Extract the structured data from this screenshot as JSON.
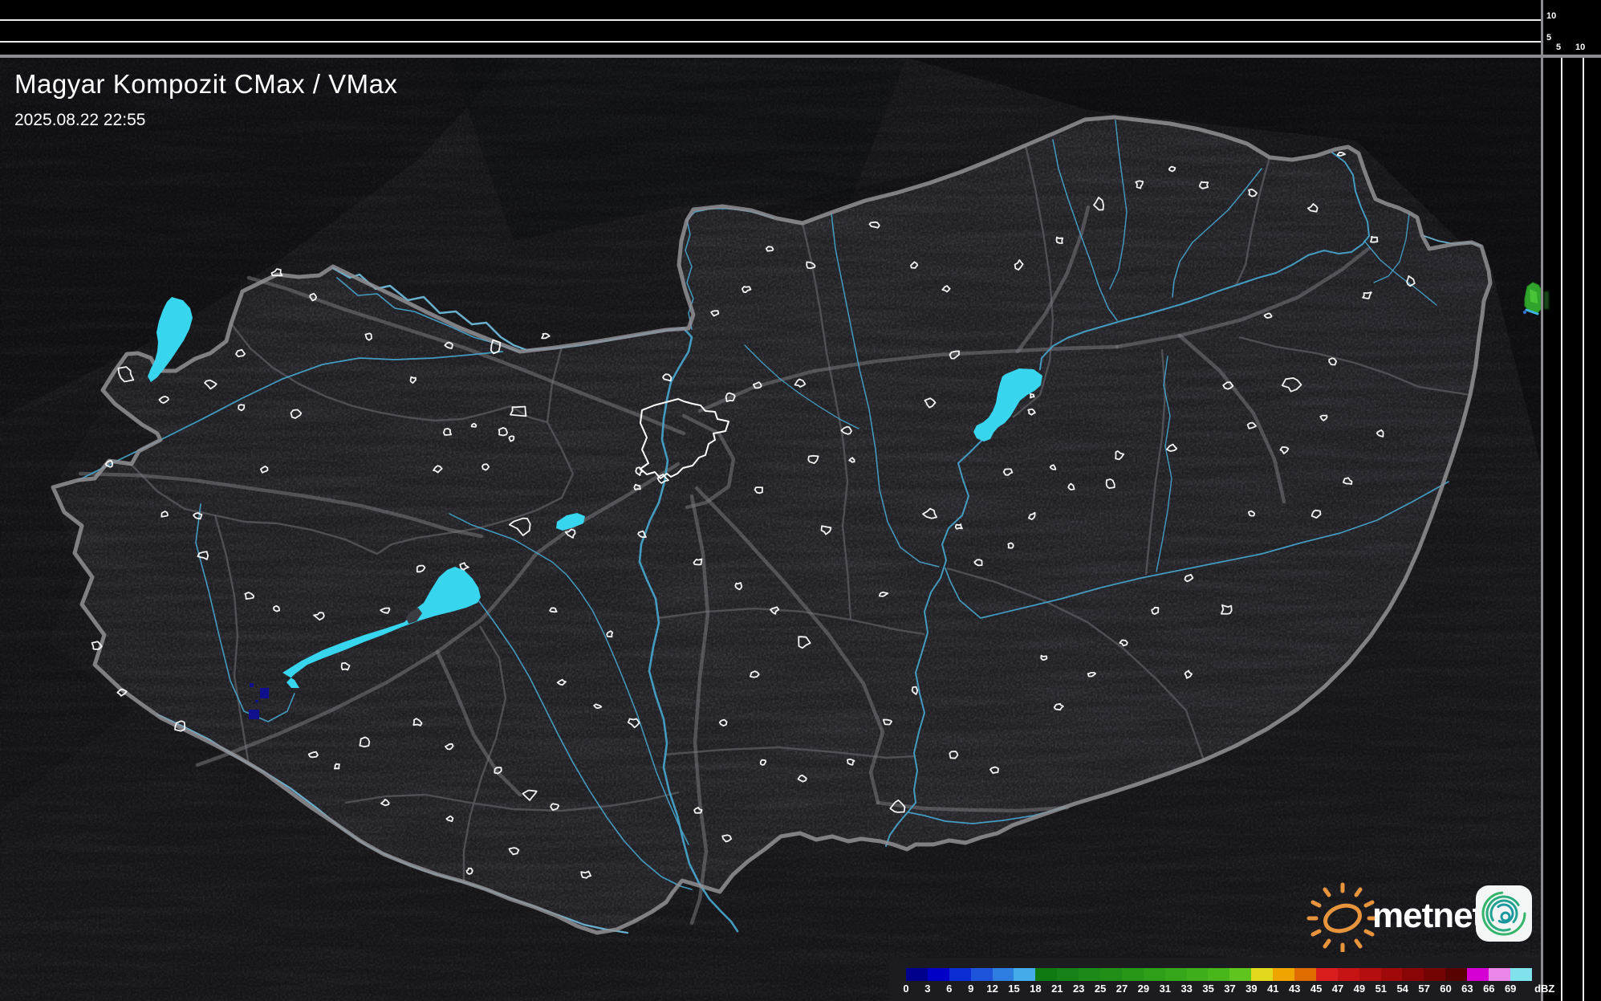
{
  "header": {
    "title": "Magyar Kompozit CMax / VMax",
    "timestamp": "2025.08.22 22:55"
  },
  "vertical_scale": {
    "top_axis_labels": [
      "10",
      "5"
    ],
    "right_axis_labels": [
      "5",
      "10"
    ]
  },
  "colorbar": {
    "unit": "dBZ",
    "ticks": [
      "0",
      "3",
      "6",
      "9",
      "12",
      "15",
      "18",
      "21",
      "23",
      "25",
      "27",
      "29",
      "31",
      "33",
      "35",
      "37",
      "39",
      "41",
      "43",
      "45",
      "47",
      "49",
      "51",
      "54",
      "57",
      "60",
      "63",
      "66",
      "69"
    ],
    "colors": [
      "#00008c",
      "#0000c6",
      "#0c2cd4",
      "#1e54dc",
      "#2e7ee2",
      "#44ace8",
      "#0f7a12",
      "#158117",
      "#1b8a16",
      "#218f17",
      "#279718",
      "#2e9f19",
      "#36a71a",
      "#3fae1b",
      "#49b61c",
      "#60c41e",
      "#e2d81e",
      "#f0a400",
      "#e06c00",
      "#d81e1e",
      "#c61414",
      "#b40e0e",
      "#a00909",
      "#8a0606",
      "#740404",
      "#580202",
      "#d400d4",
      "#ea85ea",
      "#7fe2ec"
    ]
  },
  "logo": {
    "brand": "metnet"
  },
  "map": {
    "colors": {
      "lake": "#38d6ee",
      "river": "#46a2c8",
      "country_border": "#909095",
      "city_outline": "#ffffff",
      "weak_echo": "#10108e",
      "cell_echo": "#2fa32b"
    }
  }
}
